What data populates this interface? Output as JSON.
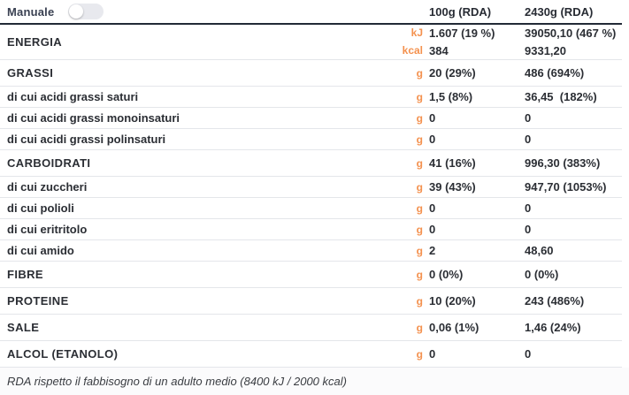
{
  "header": {
    "toggle_label": "Manuale",
    "toggle_state": "off",
    "columns": {
      "col1": "100g (RDA)",
      "col2": "2430g (RDA)"
    }
  },
  "table": {
    "energy": {
      "label": "ENERGIA",
      "lines": [
        {
          "unit": "kJ",
          "per100": "1.607 (19 %)",
          "per2430": "39050,10 (467 %)"
        },
        {
          "unit": "kcal",
          "per100": "384",
          "per2430": "9331,20"
        }
      ]
    },
    "rows": [
      {
        "label": "GRASSI",
        "type": "main",
        "unit": "g",
        "per100": "20 (29%)",
        "per2430": "486 (694%)"
      },
      {
        "label": "di cui acidi grassi saturi",
        "type": "sub",
        "unit": "g",
        "per100": "1,5 (8%)",
        "per2430": "36,45  (182%)"
      },
      {
        "label": "di cui acidi grassi monoinsaturi",
        "type": "sub",
        "unit": "g",
        "per100": "0",
        "per2430": "0"
      },
      {
        "label": "di cui acidi grassi polinsaturi",
        "type": "sub",
        "unit": "g",
        "per100": "0",
        "per2430": "0"
      },
      {
        "label": "CARBOIDRATI",
        "type": "main",
        "unit": "g",
        "per100": "41 (16%)",
        "per2430": "996,30 (383%)"
      },
      {
        "label": "di cui zuccheri",
        "type": "sub",
        "unit": "g",
        "per100": "39 (43%)",
        "per2430": "947,70 (1053%)"
      },
      {
        "label": "di cui polioli",
        "type": "sub",
        "unit": "g",
        "per100": "0",
        "per2430": "0"
      },
      {
        "label": "di cui eritritolo",
        "type": "sub",
        "unit": "g",
        "per100": "0",
        "per2430": "0"
      },
      {
        "label": "di cui amido",
        "type": "sub",
        "unit": "g",
        "per100": "2",
        "per2430": "48,60"
      },
      {
        "label": "FIBRE",
        "type": "main",
        "unit": "g",
        "per100": "0 (0%)",
        "per2430": "0 (0%)"
      },
      {
        "label": "PROTEINE",
        "type": "main",
        "unit": "g",
        "per100": "10 (20%)",
        "per2430": "243 (486%)"
      },
      {
        "label": "SALE",
        "type": "main",
        "unit": "g",
        "per100": "0,06 (1%)",
        "per2430": "1,46 (24%)"
      },
      {
        "label": "ALCOL (ETANOLO)",
        "type": "main",
        "unit": "g",
        "per100": "0",
        "per2430": "0"
      }
    ],
    "footnote": "RDA rispetto il fabbisogno di un adulto medio (8400 kJ / 2000 kcal)"
  },
  "colors": {
    "accent_orange": "#f4914e",
    "header_line": "#222a36",
    "separator": "#e4e6ea"
  }
}
